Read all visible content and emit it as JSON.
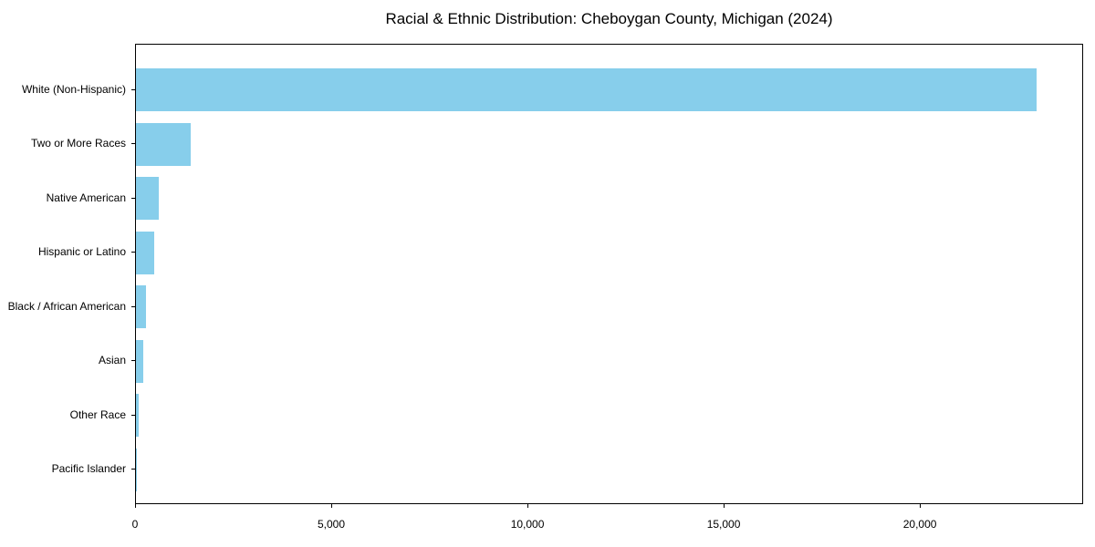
{
  "chart_data": {
    "type": "bar",
    "orientation": "horizontal",
    "title": "Racial & Ethnic Distribution: Cheboygan County, Michigan (2024)",
    "xlabel": "",
    "ylabel": "",
    "categories": [
      "White (Non-Hispanic)",
      "Two or More Races",
      "Native American",
      "Hispanic or Latino",
      "Black / African American",
      "Asian",
      "Other Race",
      "Pacific Islander"
    ],
    "values": [
      23000,
      1400,
      580,
      460,
      260,
      185,
      70,
      10
    ],
    "xlim": [
      0,
      24160
    ],
    "x_ticks": [
      0,
      5000,
      10000,
      15000,
      20000
    ],
    "x_tick_labels": [
      "0",
      "5,000",
      "10,000",
      "15,000",
      "20,000"
    ],
    "bar_color": "#87CEEB",
    "background_color": "#ffffff",
    "spine_color": "#000000",
    "grid": false,
    "legend": null
  }
}
